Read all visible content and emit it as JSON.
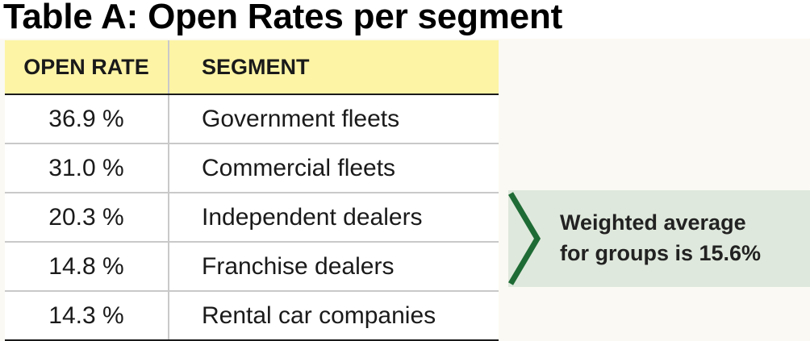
{
  "chart_data": {
    "type": "table",
    "title": "Table A: Open Rates per segment",
    "columns": [
      "OPEN RATE",
      "SEGMENT"
    ],
    "rows": [
      {
        "open_rate": "36.9 %",
        "segment": "Government fleets"
      },
      {
        "open_rate": "31.0 %",
        "segment": "Commercial fleets"
      },
      {
        "open_rate": "20.3 %",
        "segment": "Independent dealers"
      },
      {
        "open_rate": "14.8 %",
        "segment": "Franchise dealers"
      },
      {
        "open_rate": "14.3 %",
        "segment": "Rental car companies"
      }
    ],
    "values": [
      36.9,
      31.0,
      20.3,
      14.8,
      14.3
    ],
    "annotation": {
      "line1": "Weighted average",
      "line2": "for groups is 15.6%"
    }
  },
  "colors": {
    "header_fill": "#fdf4a6",
    "callout_fill": "#dfe8dc",
    "callout_chevron": "#1e6b35"
  }
}
